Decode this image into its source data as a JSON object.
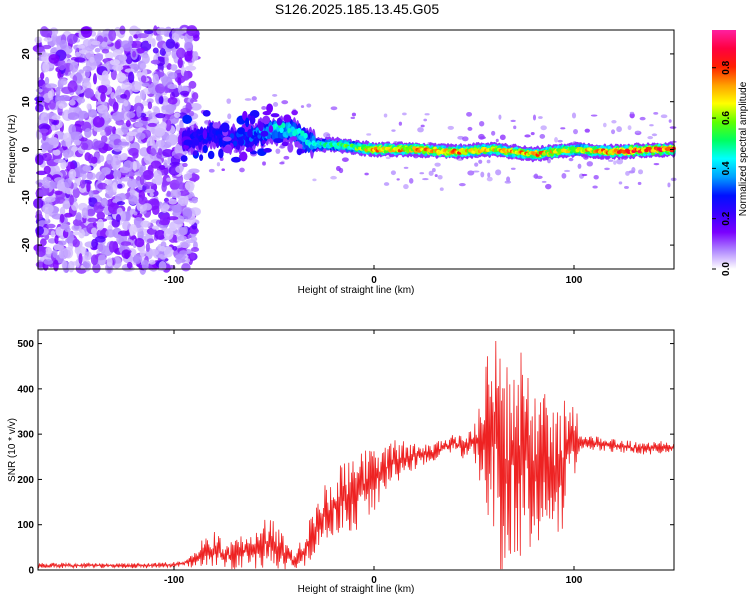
{
  "title": "S126.2025.185.13.45.G05",
  "chart_data": [
    {
      "type": "heatmap",
      "xlabel": "Height of straight line (km)",
      "ylabel": "Frequency (Hz)",
      "xlim": [
        -168,
        150
      ],
      "ylim": [
        -25,
        25
      ],
      "xticks": [
        -100,
        0,
        100
      ],
      "yticks": [
        -20,
        -10,
        0,
        10,
        20
      ],
      "colorbar": {
        "label": "Normalized spectral amplitude",
        "range": [
          0,
          0.95
        ],
        "ticks": [
          0.0,
          0.2,
          0.4,
          0.6,
          0.8
        ],
        "colormap": [
          "#ffffff",
          "#b088ff",
          "#7a00ff",
          "#3a00ff",
          "#0010ff",
          "#00a0ff",
          "#00ffff",
          "#00ff60",
          "#60ff00",
          "#ffff00",
          "#ffa000",
          "#ff2000",
          "#ff0040",
          "#ff20a0"
        ]
      },
      "ridge": {
        "x": [
          -95,
          -80,
          -70,
          -60,
          -50,
          -45,
          -40,
          -35,
          -30,
          -20,
          -10,
          0,
          10,
          20,
          40,
          60,
          80,
          100,
          120,
          140,
          150
        ],
        "frequency": [
          2,
          3,
          2,
          3,
          4,
          4,
          4,
          2,
          1,
          1,
          0.5,
          0,
          0,
          0,
          -0.5,
          0,
          -1,
          0,
          -0.5,
          0,
          0
        ],
        "amplitude": [
          0.25,
          0.3,
          0.3,
          0.35,
          0.45,
          0.5,
          0.5,
          0.45,
          0.45,
          0.6,
          0.6,
          0.85,
          0.8,
          0.8,
          0.85,
          0.75,
          0.85,
          0.7,
          0.9,
          0.95,
          0.9
        ]
      },
      "noise_region_x": [
        -168,
        -95
      ]
    },
    {
      "type": "line",
      "xlabel": "Height of straight line (km)",
      "ylabel": "SNR (10 * v/v)",
      "xlim": [
        -168,
        150
      ],
      "ylim": [
        0,
        530
      ],
      "xticks": [
        -100,
        0,
        100
      ],
      "yticks": [
        0,
        100,
        200,
        300,
        400,
        500
      ],
      "line_color": "#ee2222",
      "series": [
        {
          "x": [
            -168,
            -150,
            -130,
            -110,
            -100,
            -95,
            -90,
            -85,
            -80,
            -75,
            -70,
            -65,
            -60,
            -55,
            -50,
            -45,
            -40,
            -35,
            -30,
            -25,
            -20,
            -15,
            -10,
            -5,
            0,
            10,
            20,
            30,
            40,
            45,
            50,
            55,
            60,
            65,
            70,
            75,
            80,
            85,
            90,
            95,
            100,
            103,
            110,
            120,
            130,
            140,
            150
          ],
          "values": [
            10,
            10,
            10,
            10,
            12,
            15,
            25,
            40,
            45,
            35,
            30,
            40,
            45,
            60,
            55,
            35,
            20,
            45,
            80,
            120,
            140,
            160,
            160,
            190,
            200,
            240,
            250,
            260,
            280,
            270,
            280,
            290,
            310,
            200,
            260,
            250,
            230,
            240,
            220,
            240,
            290,
            280,
            280,
            275,
            270,
            270,
            270
          ],
          "spread": [
            6,
            6,
            6,
            6,
            6,
            8,
            25,
            35,
            40,
            35,
            35,
            40,
            50,
            60,
            60,
            40,
            20,
            40,
            70,
            70,
            80,
            80,
            80,
            80,
            70,
            50,
            30,
            20,
            25,
            25,
            35,
            150,
            240,
            240,
            230,
            230,
            180,
            160,
            140,
            150,
            130,
            15,
            15,
            15,
            15,
            15,
            15
          ]
        }
      ]
    }
  ]
}
